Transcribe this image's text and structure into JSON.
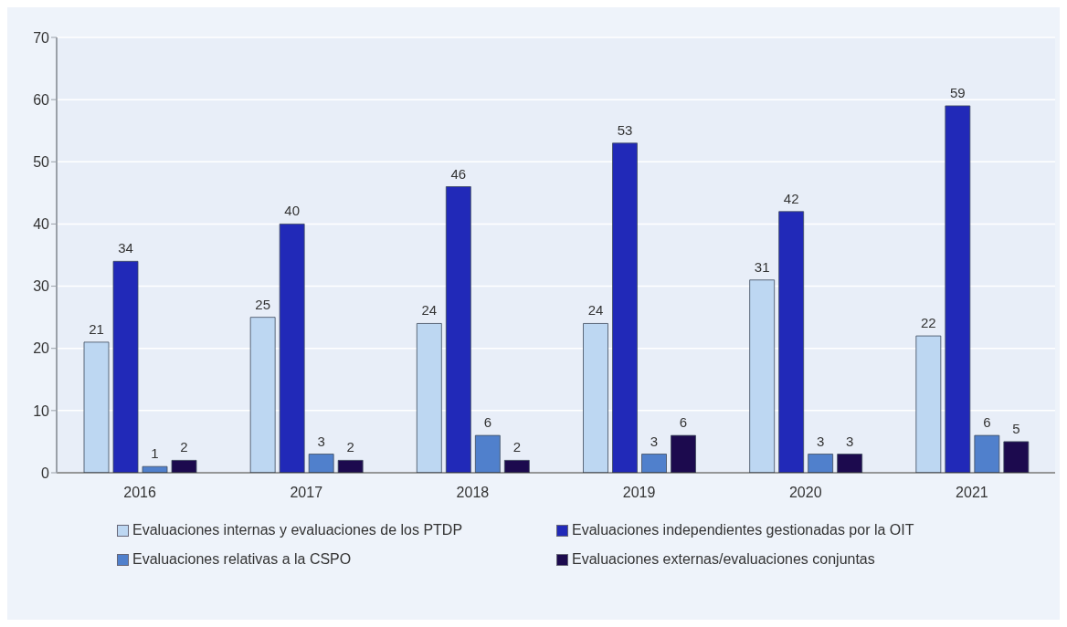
{
  "chart_data": {
    "type": "bar",
    "categories": [
      "2016",
      "2017",
      "2018",
      "2019",
      "2020",
      "2021"
    ],
    "series": [
      {
        "name": "Evaluaciones internas y evaluaciones de los PTDP",
        "color": "#bdd7f2",
        "values": [
          21,
          25,
          24,
          24,
          31,
          22
        ]
      },
      {
        "name": "Evaluaciones independientes gestionadas por la OIT",
        "color": "#2129b8",
        "values": [
          34,
          40,
          46,
          53,
          42,
          59
        ]
      },
      {
        "name": "Evaluaciones relativas a la CSPO",
        "color": "#5080cc",
        "values": [
          1,
          3,
          6,
          3,
          3,
          6
        ]
      },
      {
        "name": "Evaluaciones externas/evaluaciones conjuntas",
        "color": "#1c0a4e",
        "values": [
          2,
          2,
          2,
          6,
          3,
          5
        ]
      }
    ],
    "ylim": [
      0,
      70
    ],
    "yticks": [
      0,
      10,
      20,
      30,
      40,
      50,
      60,
      70
    ],
    "grid": "y",
    "legend": "bottom",
    "data_labels": true
  }
}
